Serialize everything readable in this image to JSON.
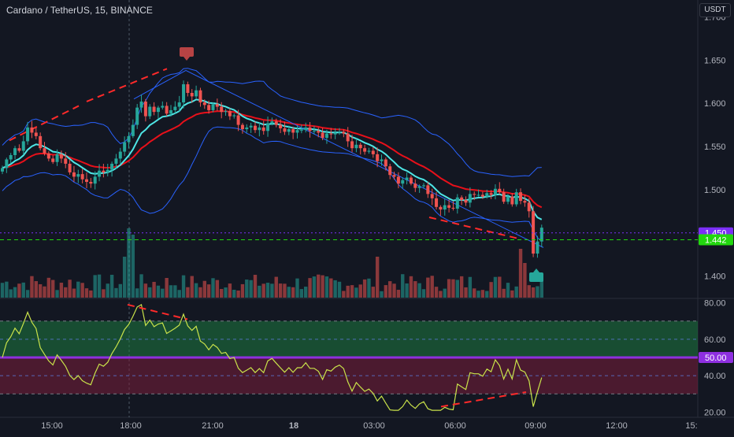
{
  "chart_data": [
    {
      "type": "candlestick",
      "title": "Cardano / TetherUS, 15, BINANCE",
      "currency": "USDT",
      "y_ticks": [
        "1.400",
        "1.450",
        "1.500",
        "1.550",
        "1.600",
        "1.650",
        "1.700"
      ],
      "ylim": [
        1.375,
        1.715
      ],
      "x_ticks": [
        "15:00",
        "18:00",
        "21:00",
        "18",
        "03:00",
        "06:00",
        "09:00",
        "12:00",
        "15:"
      ],
      "price_labels": [
        {
          "value": 1.45,
          "text": "1.450",
          "color": "#7b2ff7"
        },
        {
          "value": 1.442,
          "text": "1.442",
          "color": "#22d70e"
        }
      ],
      "colors": {
        "up": "#26a69a",
        "down": "#ef5350",
        "bb": "#2962ff",
        "ema_fast": "#4ee6e6",
        "ema_slow": "#e8101a",
        "trend": "#ff2a2a"
      },
      "closes": [
        1.525,
        1.535,
        1.54,
        1.548,
        1.545,
        1.556,
        1.572,
        1.566,
        1.562,
        1.548,
        1.542,
        1.536,
        1.532,
        1.541,
        1.536,
        1.53,
        1.52,
        1.515,
        1.518,
        1.512,
        1.509,
        1.507,
        1.515,
        1.522,
        1.52,
        1.523,
        1.53,
        1.536,
        1.544,
        1.555,
        1.562,
        1.575,
        1.595,
        1.602,
        1.585,
        1.596,
        1.59,
        1.595,
        1.597,
        1.588,
        1.592,
        1.596,
        1.601,
        1.622,
        1.612,
        1.608,
        1.615,
        1.601,
        1.598,
        1.592,
        1.599,
        1.596,
        1.59,
        1.591,
        1.585,
        1.586,
        1.575,
        1.57,
        1.572,
        1.574,
        1.569,
        1.572,
        1.568,
        1.577,
        1.579,
        1.575,
        1.571,
        1.567,
        1.57,
        1.566,
        1.569,
        1.569,
        1.572,
        1.568,
        1.568,
        1.566,
        1.56,
        1.565,
        1.564,
        1.566,
        1.567,
        1.565,
        1.556,
        1.548,
        1.552,
        1.548,
        1.544,
        1.545,
        1.541,
        1.533,
        1.535,
        1.527,
        1.517,
        1.515,
        1.507,
        1.511,
        1.514,
        1.507,
        1.502,
        1.504,
        1.505,
        1.495,
        1.49,
        1.48,
        1.477,
        1.482,
        1.479,
        1.478,
        1.491,
        1.488,
        1.485,
        1.495,
        1.494,
        1.494,
        1.492,
        1.496,
        1.494,
        1.501,
        1.497,
        1.486,
        1.492,
        1.483,
        1.497,
        1.487,
        1.485,
        1.475,
        1.426,
        1.44,
        1.456
      ],
      "indicators": [
        "Bollinger Bands",
        "EMA",
        "Volume",
        "RSI"
      ],
      "rsi": {
        "y_ticks": [
          "20.00",
          "40.00",
          "60.00",
          "80.00"
        ],
        "ylim": [
          18,
          82
        ],
        "upper_band": 70,
        "lower_band": 30,
        "mid_lines": [
          60,
          40
        ],
        "current": "50.00"
      }
    }
  ]
}
